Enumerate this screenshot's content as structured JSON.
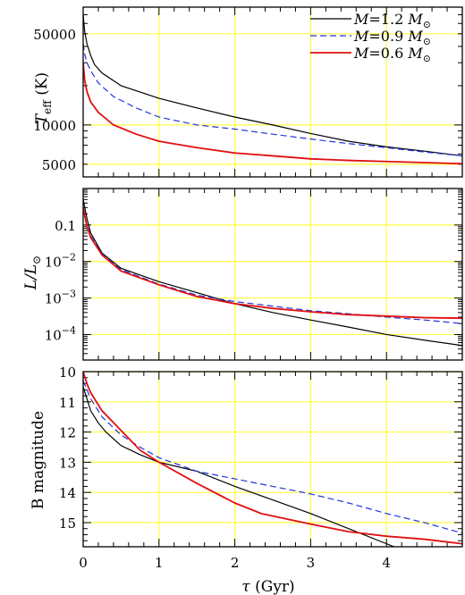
{
  "chart_data": [
    {
      "type": "line",
      "yscale": "log",
      "ylabel": "T",
      "ylabel_sub": "eff",
      "ylabel_unit": "(K)",
      "xlim": [
        0,
        5
      ],
      "ylim": [
        4000,
        80000
      ],
      "grid": true,
      "legend": "top-right",
      "yticks": [
        {
          "value": 50000,
          "label": "50000"
        },
        {
          "value": 10000,
          "label": "10000"
        },
        {
          "value": 5000,
          "label": "5000"
        }
      ],
      "series": [
        {
          "name": "M=1.2 M⊙",
          "mass": "1.2",
          "color": "#000000",
          "dash": "solid",
          "x": [
            0,
            0.02,
            0.05,
            0.1,
            0.15,
            0.25,
            0.5,
            1.0,
            1.5,
            2.0,
            2.5,
            3.0,
            3.5,
            4.0,
            4.5,
            5.0
          ],
          "y": [
            70000,
            52000,
            42000,
            34000,
            29000,
            25000,
            20000,
            16000,
            13500,
            11500,
            10000,
            8600,
            7500,
            6800,
            6300,
            5800
          ]
        },
        {
          "name": "M=0.9 M⊙",
          "mass": "0.9",
          "color": "#2233dd",
          "dash": "dashed",
          "x": [
            0,
            0.02,
            0.05,
            0.1,
            0.2,
            0.4,
            0.7,
            1.0,
            1.5,
            2.0,
            2.5,
            3.0,
            3.5,
            4.0,
            4.5,
            5.0
          ],
          "y": [
            42000,
            35000,
            30000,
            26000,
            21000,
            16500,
            13500,
            11500,
            10000,
            9300,
            8500,
            7800,
            7200,
            6700,
            6200,
            5800
          ]
        },
        {
          "name": "M=0.6 M⊙",
          "mass": "0.6",
          "color": "#e01010",
          "dash": "solid",
          "x": [
            0,
            0.02,
            0.05,
            0.1,
            0.2,
            0.4,
            0.7,
            1.0,
            1.5,
            2.0,
            2.5,
            3.0,
            3.5,
            4.0,
            4.5,
            5.0
          ],
          "y": [
            30000,
            22000,
            18000,
            15000,
            12500,
            10000,
            8500,
            7500,
            6700,
            6100,
            5800,
            5500,
            5350,
            5250,
            5150,
            5050
          ]
        }
      ]
    },
    {
      "type": "line",
      "yscale": "log",
      "ylabel": "L/L",
      "ylabel_sub": "⊙",
      "xlim": [
        0,
        5
      ],
      "ylim": [
        2e-05,
        1
      ],
      "grid": true,
      "yticks": [
        {
          "value": 0.1,
          "label": "0.1"
        },
        {
          "value": 0.01,
          "label": "10",
          "exp": "−2"
        },
        {
          "value": 0.001,
          "label": "10",
          "exp": "−3"
        },
        {
          "value": 0.0001,
          "label": "10",
          "exp": "−4"
        }
      ],
      "series": [
        {
          "name": "M=1.2 M⊙",
          "color": "#000000",
          "dash": "solid",
          "x": [
            0,
            0.05,
            0.1,
            0.25,
            0.5,
            1.0,
            1.5,
            2.0,
            2.5,
            3.0,
            3.5,
            4.0,
            4.5,
            5.0
          ],
          "y": [
            0.5,
            0.15,
            0.06,
            0.017,
            0.0065,
            0.0028,
            0.0014,
            0.0007,
            0.0004,
            0.00025,
            0.00016,
            0.0001,
            7e-05,
            5e-05
          ]
        },
        {
          "name": "M=0.9 M⊙",
          "color": "#2233dd",
          "dash": "dashed",
          "x": [
            0,
            0.05,
            0.1,
            0.25,
            0.5,
            1.0,
            1.5,
            2.0,
            2.5,
            3.0,
            3.5,
            4.0,
            4.5,
            5.0
          ],
          "y": [
            0.3,
            0.1,
            0.05,
            0.016,
            0.006,
            0.0024,
            0.0012,
            0.0008,
            0.0006,
            0.00045,
            0.00037,
            0.0003,
            0.00025,
            0.0002
          ]
        },
        {
          "name": "M=0.6 M⊙",
          "color": "#e01010",
          "dash": "solid",
          "x": [
            0,
            0.05,
            0.1,
            0.25,
            0.5,
            1.0,
            1.5,
            2.0,
            2.5,
            3.0,
            3.5,
            4.0,
            4.5,
            5.0
          ],
          "y": [
            0.3,
            0.09,
            0.045,
            0.015,
            0.0055,
            0.0023,
            0.0011,
            0.0007,
            0.00052,
            0.00042,
            0.00035,
            0.00032,
            0.00029,
            0.00028
          ]
        }
      ]
    },
    {
      "type": "line",
      "yscale": "linear",
      "yinverted": true,
      "ylabel": "B magnitude",
      "xlabel": "τ (Gyr)",
      "xlim": [
        0,
        5
      ],
      "ylim": [
        10,
        15.8
      ],
      "grid": true,
      "xticks": [
        0,
        1,
        2,
        3,
        4
      ],
      "yticks": [
        10,
        11,
        12,
        13,
        14,
        15
      ],
      "series": [
        {
          "name": "M=1.2 M⊙",
          "color": "#000000",
          "dash": "solid",
          "x": [
            0,
            0.05,
            0.1,
            0.2,
            0.3,
            0.5,
            0.75,
            1.0,
            1.5,
            2.0,
            2.5,
            3.0,
            3.5,
            4.0,
            4.3
          ],
          "y": [
            10.5,
            10.9,
            11.3,
            11.7,
            12.0,
            12.45,
            12.75,
            13.0,
            13.3,
            13.8,
            14.25,
            14.7,
            15.2,
            15.7,
            16.0
          ]
        },
        {
          "name": "M=0.9 M⊙",
          "color": "#2233dd",
          "dash": "dashed",
          "x": [
            0,
            0.05,
            0.1,
            0.25,
            0.5,
            0.75,
            1.0,
            1.5,
            2.0,
            2.5,
            3.0,
            3.5,
            4.0,
            4.5,
            5.0
          ],
          "y": [
            10.3,
            10.6,
            10.9,
            11.5,
            12.1,
            12.5,
            12.85,
            13.3,
            13.55,
            13.8,
            14.05,
            14.35,
            14.7,
            15.0,
            15.35
          ]
        },
        {
          "name": "M=0.6 M⊙",
          "color": "#e01010",
          "dash": "solid",
          "x": [
            0,
            0.05,
            0.1,
            0.25,
            0.5,
            0.75,
            1.0,
            1.5,
            2.0,
            2.35,
            3.0,
            3.5,
            4.0,
            4.5,
            5.0
          ],
          "y": [
            10.0,
            10.4,
            10.7,
            11.3,
            11.95,
            12.6,
            13.0,
            13.7,
            14.35,
            14.7,
            15.05,
            15.3,
            15.45,
            15.55,
            15.7
          ]
        }
      ]
    }
  ],
  "legend": {
    "entries": [
      {
        "prefix": "M=",
        "mass": "1.2",
        "unit": "M",
        "sub": "⊙"
      },
      {
        "prefix": "M=",
        "mass": "0.9",
        "unit": "M",
        "sub": "⊙"
      },
      {
        "prefix": "M=",
        "mass": "0.6",
        "unit": "M",
        "sub": "⊙"
      }
    ]
  },
  "colors": {
    "grid": "#ffff40",
    "axis": "#000000",
    "m12": "#000000",
    "m09": "#2233dd",
    "m06": "#e01010"
  }
}
